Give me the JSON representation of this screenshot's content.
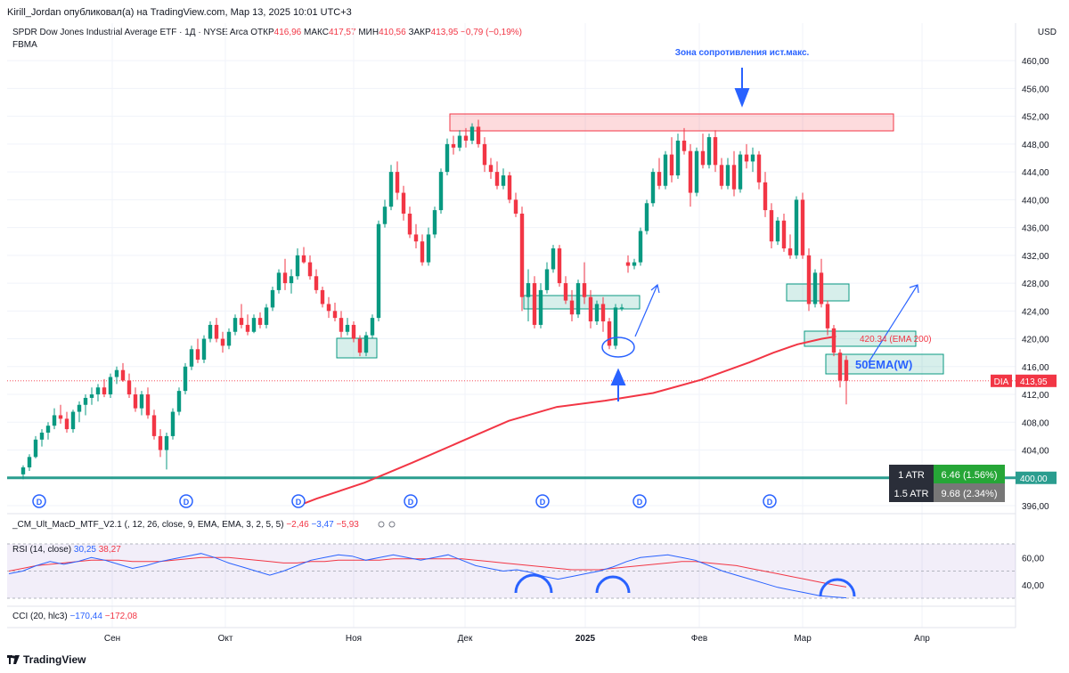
{
  "header": {
    "publisher_line": "Kirill_Jordan опубликовал(а) на TradingView.com, Мар 13, 2025 10:01 UTC+3",
    "symbol_line": "SPDR Dow Jones Industrial Average ETF · 1Д · NYSE Arca",
    "open_label": "ОТКР",
    "open_value": "416,96",
    "high_label": "МАКС",
    "high_value": "417,57",
    "low_label": "МИН",
    "low_value": "410,56",
    "close_label": "ЗАКР",
    "close_value": "413,95",
    "change_value": "−0,79 (−0,19%)",
    "indicator_line": "FBMA",
    "currency": "USD"
  },
  "annotations": {
    "resistance_text": "Зона сопротивления ист.макс.",
    "ema200_text": "420.34 (EMA 200)",
    "ema50w_text": "50EMA(W)",
    "dividend_marker": "D",
    "atr_rows": [
      {
        "label": "1 ATR",
        "value": "6.46 (1.56%)"
      },
      {
        "label": "1.5 ATR",
        "value": "9.68 (2.34%)"
      }
    ]
  },
  "price_tags": {
    "symbol": "DIA",
    "last_price": "413,95",
    "level_price": "400,00"
  },
  "panes": {
    "macd_label": "_CM_Ult_MacD_MTF_V2.1 (, 12, 26, close, 9, EMA, EMA, 3, 2, 5, 5)",
    "macd_values": [
      "−2,46",
      "−3,47",
      "−5,93"
    ],
    "rsi_label": "RSI (14, close)",
    "rsi_values": [
      "30,25",
      "38,27"
    ],
    "rsi_ticks": [
      "60,00",
      "40,00"
    ],
    "cci_label": "CCI (20, hlc3)",
    "cci_values": [
      "−170,44",
      "−172,08"
    ]
  },
  "footer": {
    "brand": "TradingView"
  },
  "chart_data": {
    "type": "candlestick",
    "title": "SPDR Dow Jones Industrial Average ETF · 1Д · NYSE Arca",
    "ylim": [
      396,
      462
    ],
    "y_ticks": [
      "460,00",
      "456,00",
      "452,00",
      "448,00",
      "444,00",
      "440,00",
      "436,00",
      "432,00",
      "428,00",
      "424,00",
      "420,00",
      "416,00",
      "412,00",
      "408,00",
      "404,00",
      "400,00",
      "396,00"
    ],
    "x_ticks": [
      "Сен",
      "Окт",
      "Ноя",
      "Дек",
      "2025",
      "Фев",
      "Мар",
      "Апр"
    ],
    "grid": true,
    "colors": {
      "up": "#089981",
      "down": "#f23645",
      "ema": "#f23645",
      "level": "#2a9d8f",
      "annotation": "#2962ff"
    },
    "series": [
      {
        "name": "DIA",
        "type": "candlestick",
        "points": [
          [
            400.5,
            401.8,
            399.8,
            401.5
          ],
          [
            401.5,
            403.4,
            401,
            403
          ],
          [
            403,
            406,
            402.8,
            405.5
          ],
          [
            405.5,
            407,
            404.5,
            406.5
          ],
          [
            406.5,
            408,
            405.5,
            407.5
          ],
          [
            407.5,
            410,
            407,
            409
          ],
          [
            409,
            410.5,
            407.8,
            408.5
          ],
          [
            408.5,
            409.5,
            406.5,
            407
          ],
          [
            407,
            409.8,
            406.5,
            409.5
          ],
          [
            409.5,
            411,
            408,
            410.5
          ],
          [
            410.5,
            412,
            409,
            411.5
          ],
          [
            411.5,
            413,
            410.5,
            412
          ],
          [
            412,
            413.5,
            411,
            413
          ],
          [
            413,
            414.2,
            411.6,
            412
          ],
          [
            412,
            415,
            411.5,
            414.5
          ],
          [
            414.5,
            416,
            413.5,
            415.5
          ],
          [
            415.5,
            416.5,
            413.8,
            414
          ],
          [
            414,
            415,
            411.5,
            412
          ],
          [
            412,
            413,
            409.5,
            410
          ],
          [
            410,
            412.5,
            409,
            412
          ],
          [
            412,
            413,
            408.5,
            409
          ],
          [
            409,
            409.8,
            405.5,
            406
          ],
          [
            406,
            407,
            403,
            404
          ],
          [
            404,
            406.5,
            401.2,
            406
          ],
          [
            406,
            410,
            405.5,
            409.5
          ],
          [
            409.5,
            413,
            409,
            412.5
          ],
          [
            412.5,
            416.5,
            412,
            416
          ],
          [
            416,
            419,
            415.5,
            418.5
          ],
          [
            418.5,
            420,
            416.5,
            417
          ],
          [
            417,
            420.5,
            416.5,
            420
          ],
          [
            420,
            422.5,
            419.5,
            422
          ],
          [
            422,
            423,
            419.5,
            420
          ],
          [
            420,
            421,
            418,
            419
          ],
          [
            419,
            421.5,
            418.5,
            421
          ],
          [
            421,
            423.5,
            420.5,
            423
          ],
          [
            423,
            425,
            421.5,
            422
          ],
          [
            422,
            423.5,
            420.5,
            421
          ],
          [
            421,
            423.5,
            420.8,
            423
          ],
          [
            423,
            423.8,
            421.5,
            422
          ],
          [
            422,
            425,
            421.5,
            424.5
          ],
          [
            424.5,
            427.5,
            424,
            427
          ],
          [
            427,
            430,
            426.5,
            429.5
          ],
          [
            429.5,
            431.5,
            427,
            428
          ],
          [
            428,
            430,
            426.5,
            429
          ],
          [
            429,
            433,
            428.5,
            432
          ],
          [
            432,
            433.2,
            430.8,
            431
          ],
          [
            431,
            432,
            428.5,
            429
          ],
          [
            429,
            430,
            426.5,
            427
          ],
          [
            427,
            427.5,
            424.5,
            425
          ],
          [
            425,
            426,
            423,
            424
          ],
          [
            424,
            425.2,
            422.5,
            423
          ],
          [
            423,
            424,
            420.2,
            421
          ],
          [
            421,
            423,
            420.5,
            422
          ],
          [
            422,
            422.5,
            419.5,
            420
          ],
          [
            420,
            420.5,
            417.5,
            418
          ],
          [
            418,
            421,
            417.5,
            420.5
          ],
          [
            420.5,
            423.5,
            420,
            423
          ],
          [
            423,
            437,
            422.5,
            436.5
          ],
          [
            436.5,
            440,
            436,
            439
          ],
          [
            439,
            445,
            438.5,
            444
          ],
          [
            444,
            445.5,
            440,
            441
          ],
          [
            441,
            442,
            437,
            438
          ],
          [
            438,
            439,
            434.5,
            435
          ],
          [
            435,
            436.5,
            433,
            434
          ],
          [
            434,
            435,
            430.5,
            431
          ],
          [
            431,
            436,
            430.5,
            435
          ],
          [
            435,
            439,
            434.5,
            438.5
          ],
          [
            438.5,
            444.5,
            438,
            444
          ],
          [
            444,
            448.8,
            443.5,
            448
          ],
          [
            448,
            449.2,
            446.5,
            447.5
          ],
          [
            447.5,
            450,
            447,
            449.2
          ],
          [
            449.2,
            450.3,
            447.5,
            448.5
          ],
          [
            448.5,
            451,
            448,
            450.5
          ],
          [
            450.5,
            451.5,
            447.5,
            448
          ],
          [
            448,
            449,
            444,
            445
          ],
          [
            445,
            446,
            443,
            444
          ],
          [
            444,
            445.5,
            441.5,
            442
          ],
          [
            442,
            444.5,
            441.5,
            443.5
          ],
          [
            443.5,
            444,
            439.5,
            440
          ],
          [
            440,
            441,
            437.5,
            438
          ],
          [
            438,
            439,
            424,
            426
          ],
          [
            426,
            430,
            422.5,
            428
          ],
          [
            428,
            429,
            421.5,
            422
          ],
          [
            422,
            428,
            421.5,
            427
          ],
          [
            427,
            431,
            426.5,
            430
          ],
          [
            430,
            433.5,
            429.5,
            433
          ],
          [
            433,
            433.5,
            427.5,
            428
          ],
          [
            428,
            429,
            425,
            425.5
          ],
          [
            425.5,
            427,
            422.5,
            423.5
          ],
          [
            423.5,
            428.5,
            423,
            428
          ],
          [
            428,
            431,
            425,
            426
          ],
          [
            426,
            427,
            421.5,
            422.5
          ],
          [
            422.5,
            425.5,
            422,
            425
          ],
          [
            425,
            426,
            421,
            422.5
          ],
          [
            422.5,
            423,
            418.5,
            419
          ],
          [
            419,
            425,
            418.5,
            424.5
          ],
          [
            424.5,
            425,
            424,
            424.5
          ],
          [
            431,
            432,
            429.5,
            430.5
          ],
          [
            430.5,
            431.5,
            430,
            431
          ],
          [
            431,
            436,
            430.5,
            435.5
          ],
          [
            435.5,
            440,
            435,
            439.5
          ],
          [
            439.5,
            444.5,
            439,
            444
          ],
          [
            444,
            446,
            441.5,
            442
          ],
          [
            442,
            447,
            441.5,
            446.5
          ],
          [
            446.5,
            449,
            442.5,
            443.5
          ],
          [
            443.5,
            449.5,
            443,
            448.5
          ],
          [
            448.5,
            450.3,
            446.5,
            447
          ],
          [
            447,
            448,
            439,
            441
          ],
          [
            441,
            447.5,
            440.5,
            447
          ],
          [
            447,
            449.5,
            444.5,
            445
          ],
          [
            445,
            449.5,
            444.5,
            449
          ],
          [
            449,
            450,
            444,
            445
          ],
          [
            445,
            446,
            441.5,
            442
          ],
          [
            442,
            446,
            441.5,
            445
          ],
          [
            445,
            447,
            440.5,
            441.5
          ],
          [
            441.5,
            447,
            441,
            446.5
          ],
          [
            446.5,
            448,
            444.5,
            445.5
          ],
          [
            445.5,
            447.5,
            444,
            446.5
          ],
          [
            446.5,
            447,
            441.5,
            442.5
          ],
          [
            442.5,
            444,
            437.5,
            438.5
          ],
          [
            438.5,
            439.5,
            433,
            434
          ],
          [
            434,
            437.5,
            433.5,
            437
          ],
          [
            437,
            438,
            432.5,
            433
          ],
          [
            433,
            435,
            431.5,
            432
          ],
          [
            432,
            440.5,
            431.5,
            440
          ],
          [
            440,
            441,
            431.5,
            432
          ],
          [
            432,
            433,
            424,
            425
          ],
          [
            425,
            430,
            424.5,
            429.5
          ],
          [
            429.5,
            431.5,
            424.5,
            425
          ],
          [
            425,
            425.5,
            420.5,
            421.5
          ],
          [
            421.5,
            422,
            417.5,
            418
          ],
          [
            418,
            418.5,
            413,
            414
          ],
          [
            416.96,
            417.57,
            410.56,
            413.95
          ]
        ]
      },
      {
        "name": "EMA 200",
        "type": "line",
        "x": [
          17,
          20,
          30,
          40,
          50,
          60,
          70,
          80,
          90,
          100,
          110,
          115,
          120,
          125,
          128
        ],
        "values": [
          396.2,
          397,
          399.3,
          402.2,
          405.2,
          408.2,
          410.2,
          411.1,
          412.2,
          414.1,
          416.6,
          418,
          419.2,
          420,
          420.34
        ]
      }
    ],
    "rsi": {
      "ylim": [
        30,
        70
      ],
      "ticks": [
        60,
        40
      ],
      "rsi": [
        48,
        50,
        54,
        57,
        55,
        57,
        60,
        58,
        55,
        52,
        54,
        57,
        59,
        61,
        63,
        60,
        56,
        53,
        50,
        47,
        50,
        54,
        58,
        60,
        62,
        61,
        58,
        60,
        62,
        60,
        58,
        60,
        62,
        58,
        54,
        52,
        50,
        51,
        49,
        46,
        44,
        46,
        48,
        50,
        53,
        57,
        60,
        61,
        62,
        60,
        58,
        54,
        50,
        47,
        44,
        41,
        38,
        36,
        34,
        32,
        31,
        30.25
      ],
      "signal": [
        50,
        52,
        54,
        55,
        56,
        57,
        58,
        58,
        58,
        57,
        57,
        57,
        58,
        59,
        60,
        60,
        60,
        59,
        58,
        57,
        56,
        56,
        57,
        57,
        58,
        58,
        58,
        58,
        59,
        59,
        59,
        59,
        59,
        59,
        58,
        57,
        56,
        55,
        54,
        53,
        52,
        51,
        51,
        51,
        52,
        53,
        54,
        55,
        56,
        57,
        57,
        56,
        55,
        54,
        52,
        50,
        48,
        46,
        44,
        42,
        40,
        38.27
      ]
    }
  }
}
